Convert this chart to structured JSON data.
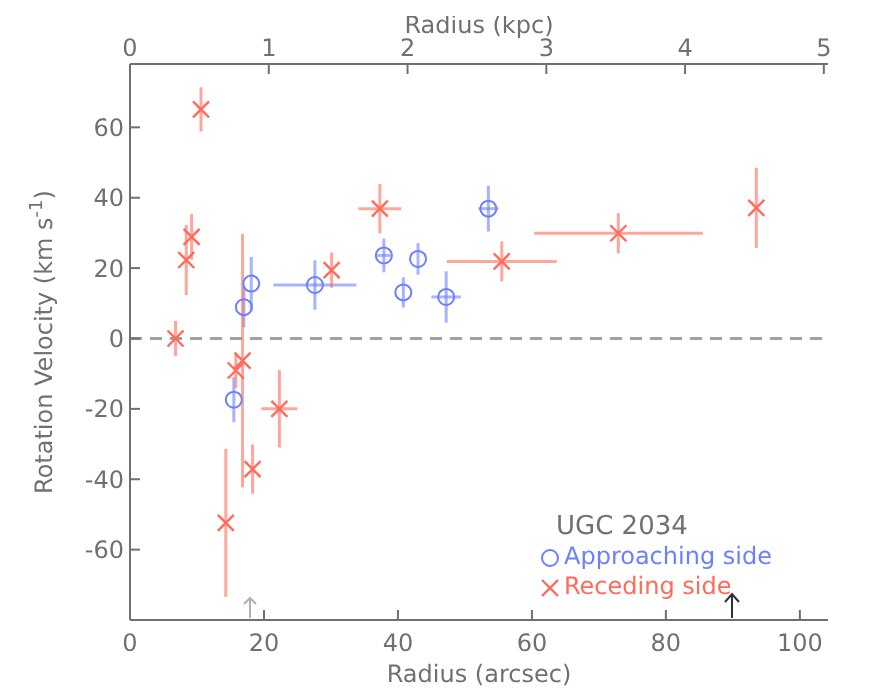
{
  "chart_data": {
    "type": "scatter",
    "xlabel": "Radius (arcsec)",
    "ylabel": "Rotation Velocity (km s$^{-1}$)",
    "x2label": "Radius (kpc)",
    "legend_title": "UGC 2034",
    "legend": "bottom right",
    "grid": false,
    "xlim": [
      0,
      104.2
    ],
    "xticks": [
      0,
      20,
      40,
      60,
      80,
      100
    ],
    "x2lim": [
      0,
      5.03
    ],
    "x2ticks": [
      0,
      1,
      2,
      3,
      4,
      5
    ],
    "ylim": [
      -80,
      78
    ],
    "yticks": [
      -60,
      -40,
      -20,
      0,
      20,
      40,
      60
    ],
    "ref_lines": [
      {
        "axis": "y",
        "value": 0,
        "color": "#a0a0a0",
        "line_style": "dashed"
      }
    ],
    "series": [
      {
        "name": "Approaching side",
        "color": "#6a80ff",
        "marker": "circle",
        "x": [
          17.0,
          18.1,
          27.6,
          37.9,
          40.8,
          43.0,
          47.2,
          53.5,
          15.5
        ],
        "values": [
          8.9,
          15.6,
          15.2,
          23.6,
          13.1,
          22.6,
          11.8,
          36.9,
          -17.4
        ],
        "errors": [
          5.7,
          7.6,
          7,
          4.8,
          4.3,
          4.5,
          7.3,
          6.5,
          6.4
        ],
        "xerrors": [
          null,
          null,
          6.2,
          1,
          null,
          null,
          2.2,
          1.5,
          null
        ]
      },
      {
        "name": "Receding side",
        "color": "#ff6a5a",
        "marker": "cross",
        "x": [
          6.8,
          8.4,
          9.2,
          10.6,
          15.8,
          16.8,
          22.3,
          18.3,
          14.3,
          30.1,
          37.3,
          55.5,
          72.9,
          93.5
        ],
        "values": [
          0,
          22.3,
          28.9,
          65.1,
          -9.1,
          -6.3,
          -20,
          -37.1,
          -52.4,
          19.4,
          36.9,
          21.9,
          29.9,
          37.1
        ],
        "errors": [
          5,
          10,
          6.5,
          6.3,
          5,
          36,
          11,
          7,
          21,
          5,
          7,
          5.7,
          5.7,
          11.4
        ],
        "xerrors": [
          null,
          null,
          null,
          null,
          null,
          null,
          2.7,
          null,
          null,
          null,
          3.2,
          8.2,
          12.6,
          null
        ]
      }
    ]
  }
}
